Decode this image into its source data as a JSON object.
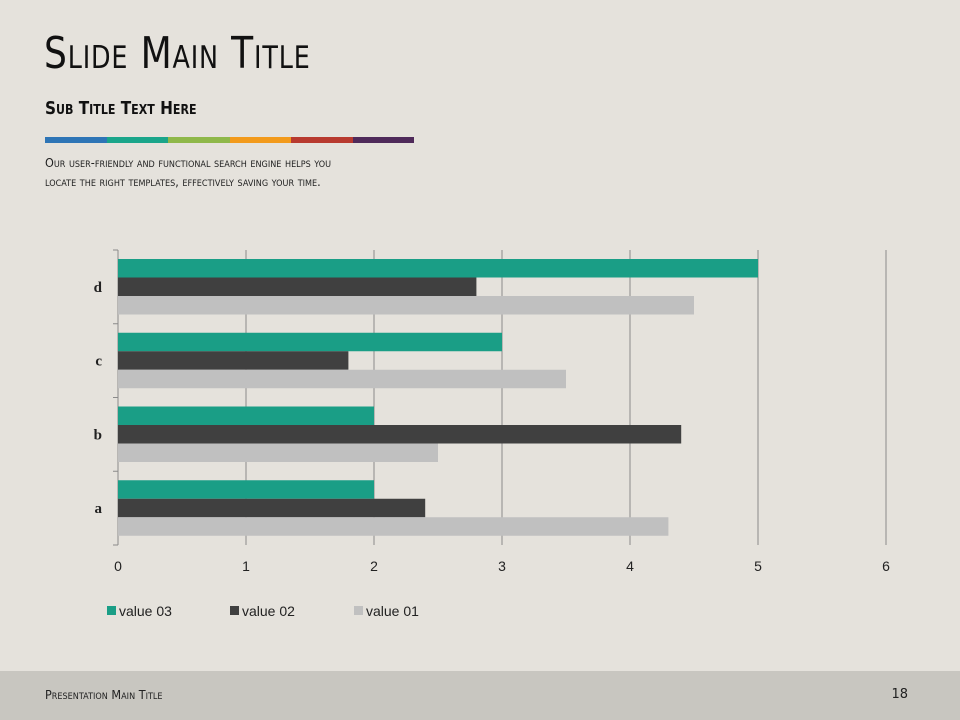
{
  "slide": {
    "title": "Slide Main Title",
    "subtitle": "Sub Title Text Here",
    "body_lines": [
      "Our user-friendly and functional search engine helps you",
      "locate the right templates, effectively saving your time."
    ],
    "stripe_colors": [
      "#2e75b6",
      "#1aa58a",
      "#8fb84a",
      "#f29a1b",
      "#b83a2f",
      "#4f2a5a"
    ]
  },
  "footer": {
    "title": "Presentation Main Title",
    "page_number": "18"
  },
  "chart_data": {
    "type": "bar",
    "orientation": "horizontal",
    "categories": [
      "a",
      "b",
      "c",
      "d"
    ],
    "series": [
      {
        "name": "value 03",
        "color": "#1a9e86",
        "values": [
          2,
          2,
          3,
          5
        ]
      },
      {
        "name": "value 02",
        "color": "#404040",
        "values": [
          2.4,
          4.4,
          1.8,
          2.8
        ]
      },
      {
        "name": "value 01",
        "color": "#c0c0c0",
        "values": [
          4.3,
          2.5,
          3.5,
          4.5
        ]
      }
    ],
    "xlim": [
      0,
      6
    ],
    "xticks": [
      0,
      1,
      2,
      3,
      4,
      5,
      6
    ],
    "grid": true,
    "legend_position": "bottom-left"
  }
}
